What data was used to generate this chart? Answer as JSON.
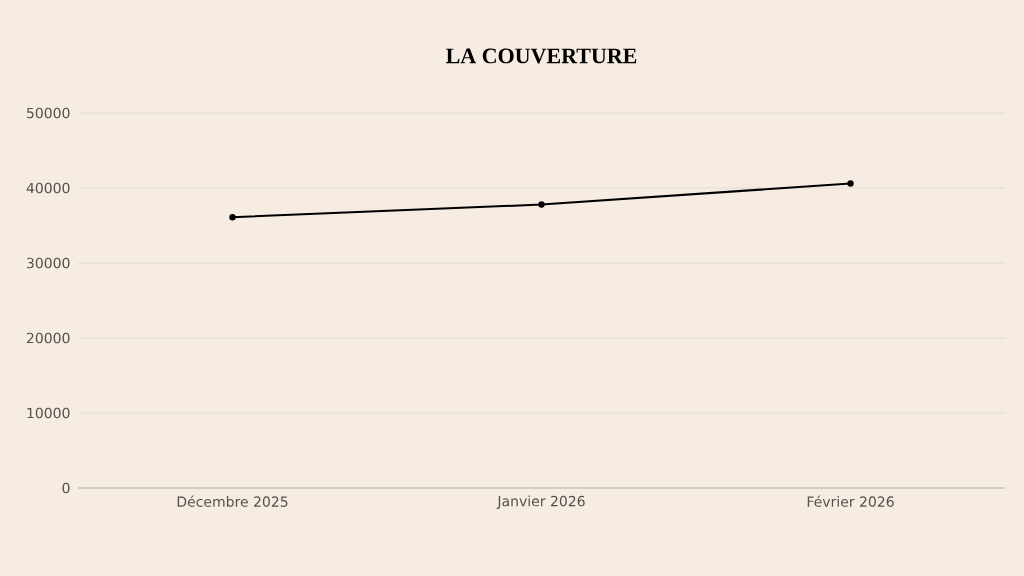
{
  "chart_data": {
    "type": "line",
    "title": "LA COUVERTURE",
    "categories": [
      "Décembre 2025",
      "Janvier 2026",
      "Février 2026"
    ],
    "series": [
      {
        "color": "#000000",
        "values": [
          36100,
          37800,
          40600
        ]
      }
    ],
    "ylim": [
      0,
      50000
    ],
    "yticks": [
      0,
      10000,
      20000,
      30000,
      40000,
      50000
    ],
    "grid": "y",
    "marker": "circle",
    "line_style": "solid"
  }
}
